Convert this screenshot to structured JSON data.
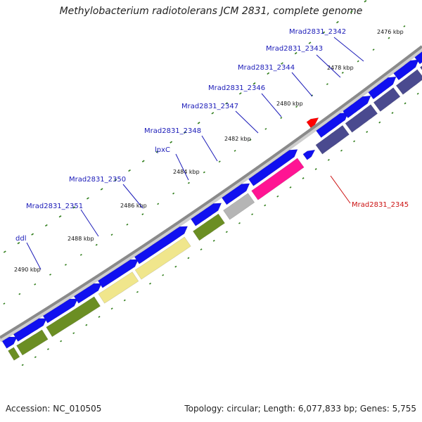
{
  "title": "Methylobacterium radiotolerans JCM 2831, complete genome",
  "footer": {
    "accession": "Accession: NC_010505",
    "stats": "Topology: circular; Length: 6,077,833 bp; Genes: 5,755"
  },
  "colors": {
    "label_blue": "#1a1ab8",
    "label_red": "#cc1111",
    "backbone": "#8a8a8a",
    "tick_green": "#2f7d1a"
  },
  "kbp_labels": [
    "2476 kbp",
    "2478 kbp",
    "2480 kbp",
    "2482 kbp",
    "2484 kbp",
    "2486 kbp",
    "2488 kbp",
    "2490 kbp"
  ],
  "gene_labels": [
    {
      "text": "Mrad2831_2342",
      "color": "#1a1ab8"
    },
    {
      "text": "Mrad2831_2343",
      "color": "#1a1ab8"
    },
    {
      "text": "Mrad2831_2344",
      "color": "#1a1ab8"
    },
    {
      "text": "Mrad2831_2346",
      "color": "#1a1ab8"
    },
    {
      "text": "Mrad2831_2347",
      "color": "#1a1ab8"
    },
    {
      "text": "Mrad2831_2348",
      "color": "#1a1ab8"
    },
    {
      "text": "lpxC",
      "color": "#1a1ab8"
    },
    {
      "text": "Mrad2831_2350",
      "color": "#1a1ab8"
    },
    {
      "text": "Mrad2831_2351",
      "color": "#1a1ab8"
    },
    {
      "text": "ddl",
      "color": "#1a1ab8"
    },
    {
      "text": "Mrad2831_2345",
      "color": "#cc1111"
    }
  ],
  "feature_colors": [
    {
      "name": "Mrad2831_2342",
      "color": "#4a4a8f"
    },
    {
      "name": "Mrad2831_2343",
      "color": "#4a4a8f"
    },
    {
      "name": "Mrad2831_2344",
      "color": "#4a4a8f"
    },
    {
      "name": "Mrad2831_2346",
      "color": "#ff1493"
    },
    {
      "name": "Mrad2831_2347",
      "color": "#b5b5b5"
    },
    {
      "name": "Mrad2831_2348",
      "color": "#6b8e23"
    },
    {
      "name": "lpxC",
      "color": "#f0e68c"
    },
    {
      "name": "Mrad2831_2350",
      "color": "#f0e68c"
    },
    {
      "name": "Mrad2831_2351",
      "color": "#6b8e23"
    },
    {
      "name": "ddl",
      "color": "#6b8e23"
    },
    {
      "name": "cds",
      "color": "#1010f0"
    },
    {
      "name": "Mrad2831_2345",
      "color": "#ff0000"
    }
  ]
}
